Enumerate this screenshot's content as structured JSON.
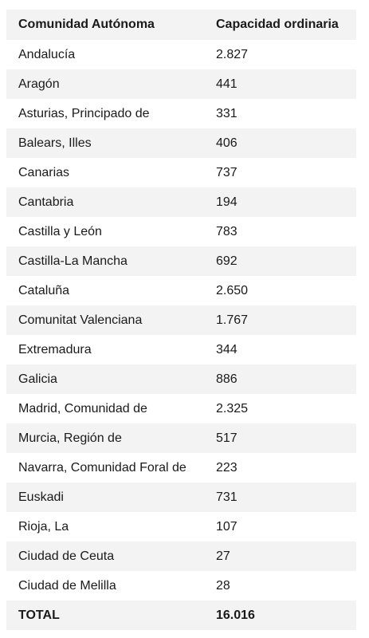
{
  "table": {
    "headers": {
      "region": "Comunidad Autónoma",
      "capacity": "Capacidad ordinaria"
    },
    "rows": [
      {
        "region": "Andalucía",
        "capacity": "2.827"
      },
      {
        "region": "Aragón",
        "capacity": "441"
      },
      {
        "region": "Asturias, Principado de",
        "capacity": "331"
      },
      {
        "region": "Balears, Illes",
        "capacity": "406"
      },
      {
        "region": "Canarias",
        "capacity": "737"
      },
      {
        "region": "Cantabria",
        "capacity": "194"
      },
      {
        "region": "Castilla y León",
        "capacity": "783"
      },
      {
        "region": "Castilla-La Mancha",
        "capacity": "692"
      },
      {
        "region": "Cataluña",
        "capacity": "2.650"
      },
      {
        "region": "Comunitat Valenciana",
        "capacity": "1.767"
      },
      {
        "region": "Extremadura",
        "capacity": "344"
      },
      {
        "region": "Galicia",
        "capacity": "886"
      },
      {
        "region": "Madrid, Comunidad de",
        "capacity": "2.325"
      },
      {
        "region": "Murcia, Región de",
        "capacity": "517"
      },
      {
        "region": "Navarra, Comunidad Foral de",
        "capacity": "223"
      },
      {
        "region": "Euskadi",
        "capacity": "731"
      },
      {
        "region": "Rioja, La",
        "capacity": "107"
      },
      {
        "region": "Ciudad de Ceuta",
        "capacity": "27"
      },
      {
        "region": "Ciudad de Melilla",
        "capacity": "28"
      }
    ],
    "total": {
      "label": "TOTAL",
      "value": "16.016"
    }
  }
}
